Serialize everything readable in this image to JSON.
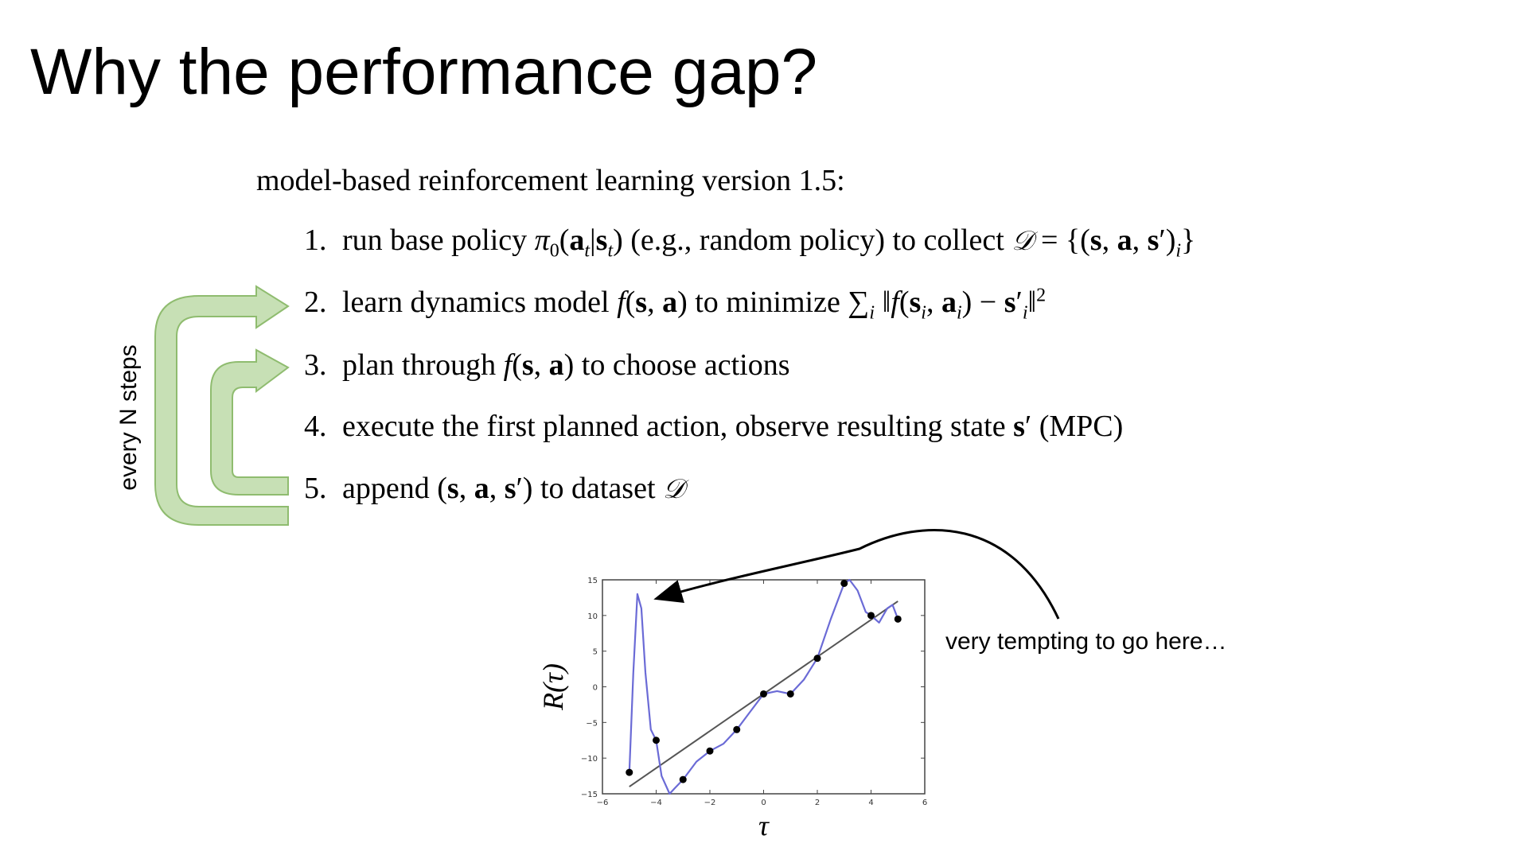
{
  "slide": {
    "title": "Why the performance gap?",
    "intro": "model-based reinforcement learning version 1.5:",
    "loop_label": "every N steps",
    "annotation": "very tempting to go here…",
    "arrow_color": "#a9d08e"
  },
  "steps": [
    {
      "num": "1."
    },
    {
      "num": "2."
    },
    {
      "num": "3."
    },
    {
      "num": "4."
    },
    {
      "num": "5."
    }
  ],
  "chart_data": {
    "type": "line",
    "title": "",
    "xlabel": "τ",
    "ylabel": "R(τ)",
    "xlim": [
      -6,
      6
    ],
    "ylim": [
      -15,
      15
    ],
    "xticks": [
      -6,
      -4,
      -2,
      0,
      2,
      4,
      6
    ],
    "yticks": [
      15,
      10,
      5,
      0,
      -5,
      -10,
      -15
    ],
    "series": [
      {
        "kind": "scatter",
        "color": "#000000",
        "x": [
          -5,
          -4,
          -3,
          -2,
          -1,
          0,
          1,
          2,
          3,
          4,
          5
        ],
        "y": [
          -12,
          -7.5,
          -13,
          -9,
          -6,
          -1,
          -1,
          4,
          14.5,
          10,
          9.5
        ]
      },
      {
        "kind": "fit-line",
        "color": "#555555",
        "x": [
          -5,
          5
        ],
        "y": [
          -14,
          12
        ]
      },
      {
        "kind": "curve",
        "color": "#6b6bd6",
        "x": [
          -5,
          -4.85,
          -4.7,
          -4.55,
          -4.4,
          -4.2,
          -4.0,
          -3.8,
          -3.5,
          -3.3,
          -3.0,
          -2.5,
          -2.0,
          -1.5,
          -1.0,
          -0.5,
          0,
          0.5,
          1.0,
          1.5,
          2.0,
          2.5,
          3.0,
          3.2,
          3.5,
          3.8,
          4.0,
          4.3,
          4.6,
          4.8,
          5.0
        ],
        "y": [
          -12,
          2,
          13,
          11,
          2,
          -6,
          -7.5,
          -12.5,
          -15,
          -14.2,
          -13,
          -10.5,
          -9,
          -8,
          -6,
          -3.5,
          -1,
          -0.6,
          -1,
          1,
          4,
          9.5,
          14.5,
          15,
          13.5,
          10.5,
          10,
          9,
          11,
          11.5,
          9.5
        ]
      }
    ]
  }
}
